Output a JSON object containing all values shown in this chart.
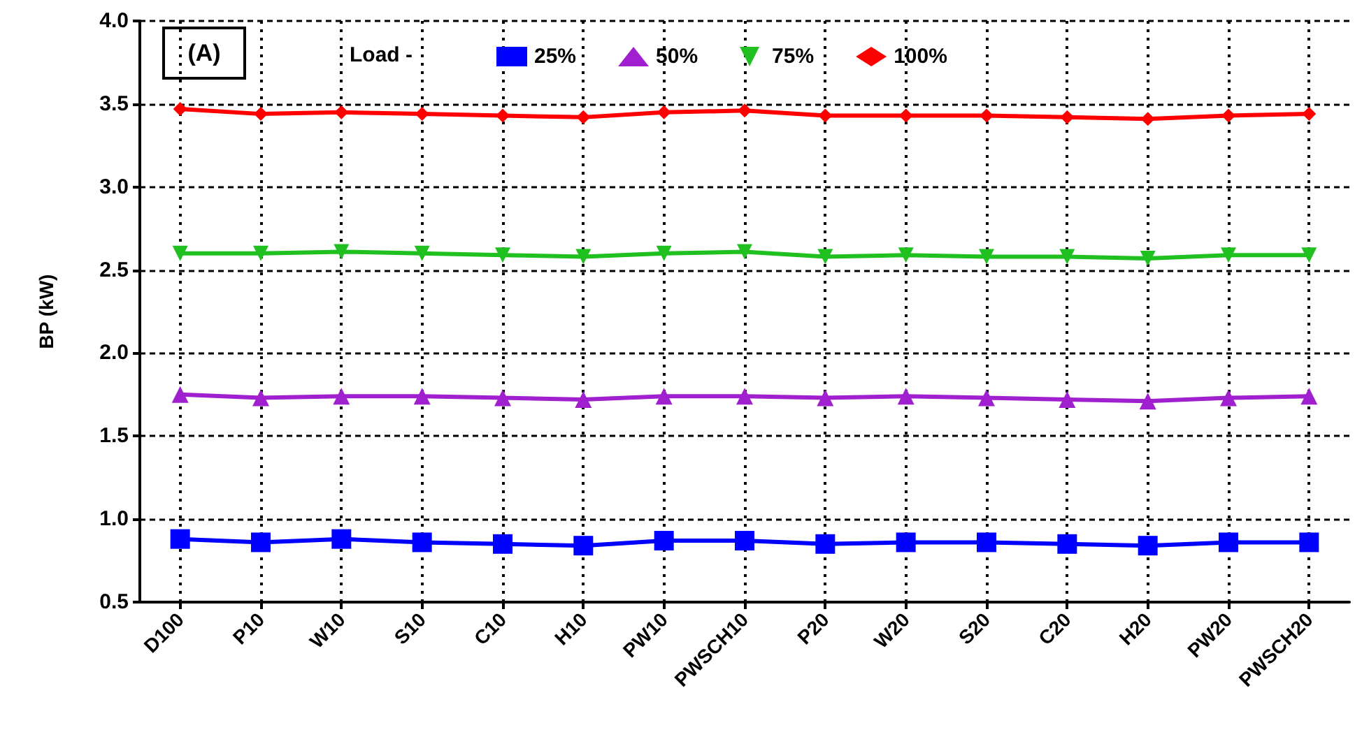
{
  "chart_data": {
    "type": "line",
    "ylabel": "BP (kW)",
    "legend_title": "Load -",
    "annotations": [
      "(A)"
    ],
    "categories": [
      "D100",
      "P10",
      "W10",
      "S10",
      "C10",
      "H10",
      "PW10",
      "PWSCH10",
      "P20",
      "W20",
      "S20",
      "C20",
      "H20",
      "PW20",
      "PWSCH20"
    ],
    "series": [
      {
        "name": "25%",
        "color": "#0000ff",
        "marker": "square",
        "values": [
          0.88,
          0.86,
          0.88,
          0.86,
          0.85,
          0.84,
          0.87,
          0.87,
          0.85,
          0.86,
          0.86,
          0.85,
          0.84,
          0.86,
          0.86
        ]
      },
      {
        "name": "50%",
        "color": "#a020d0",
        "marker": "triangle",
        "values": [
          1.75,
          1.73,
          1.74,
          1.74,
          1.73,
          1.72,
          1.74,
          1.74,
          1.73,
          1.74,
          1.73,
          1.72,
          1.71,
          1.73,
          1.74
        ]
      },
      {
        "name": "75%",
        "color": "#20c020",
        "marker": "triangle-down",
        "values": [
          2.6,
          2.6,
          2.61,
          2.6,
          2.59,
          2.58,
          2.6,
          2.61,
          2.58,
          2.59,
          2.58,
          2.58,
          2.57,
          2.59,
          2.59
        ]
      },
      {
        "name": "100%",
        "color": "#ff0000",
        "marker": "diamond",
        "values": [
          3.47,
          3.44,
          3.45,
          3.44,
          3.43,
          3.42,
          3.45,
          3.46,
          3.43,
          3.43,
          3.43,
          3.42,
          3.41,
          3.43,
          3.44
        ]
      }
    ],
    "ylim": [
      0.5,
      4.0
    ],
    "yticks": [
      0.5,
      {
        "value": 1,
        "label": "1.0"
      },
      1.5,
      {
        "value": 2,
        "label": "2.0"
      },
      2.5,
      {
        "value": 3,
        "label": "3.0"
      },
      3.5,
      {
        "value": 4,
        "label": "4.0"
      }
    ],
    "grid": true,
    "legend": "top left"
  }
}
